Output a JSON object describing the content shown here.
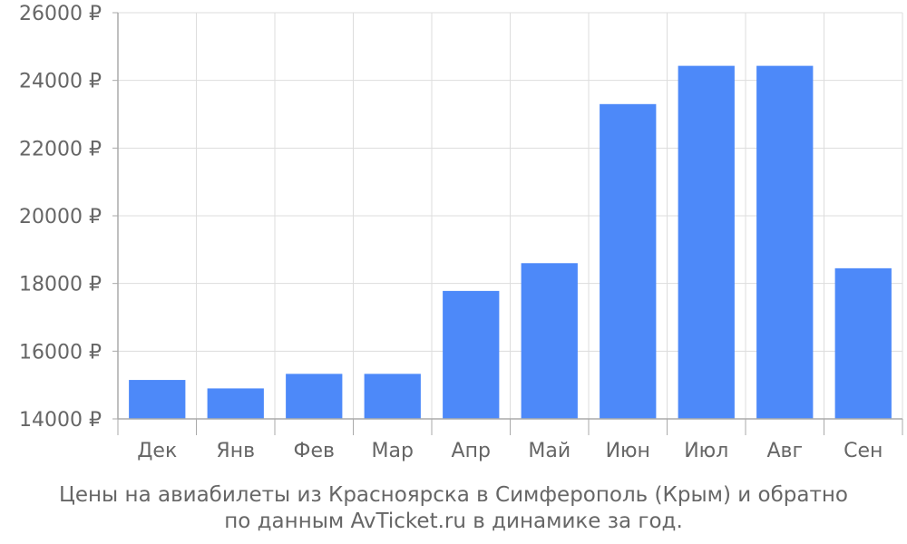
{
  "chart_data": {
    "type": "bar",
    "categories": [
      "Дек",
      "Янв",
      "Фев",
      "Мар",
      "Апр",
      "Май",
      "Июн",
      "Июл",
      "Авг",
      "Сен"
    ],
    "values": [
      15150,
      14900,
      15330,
      15330,
      17780,
      18600,
      23300,
      24430,
      24430,
      18450
    ],
    "ylim": [
      14000,
      26000
    ],
    "yticks": [
      14000,
      16000,
      18000,
      20000,
      22000,
      24000,
      26000
    ],
    "ytick_labels": [
      "14000 ₽",
      "16000 ₽",
      "18000 ₽",
      "20000 ₽",
      "22000 ₽",
      "24000 ₽",
      "26000 ₽"
    ],
    "grid": true,
    "bar_color": "#4d89f9",
    "grid_color": "#dddddd",
    "axis_color": "#aaaaaa",
    "caption_line1": "Цены на авиабилеты из Красноярска в Симферополь (Крым) и обратно",
    "caption_line2": "по данным AvTicket.ru в динамике за год."
  }
}
